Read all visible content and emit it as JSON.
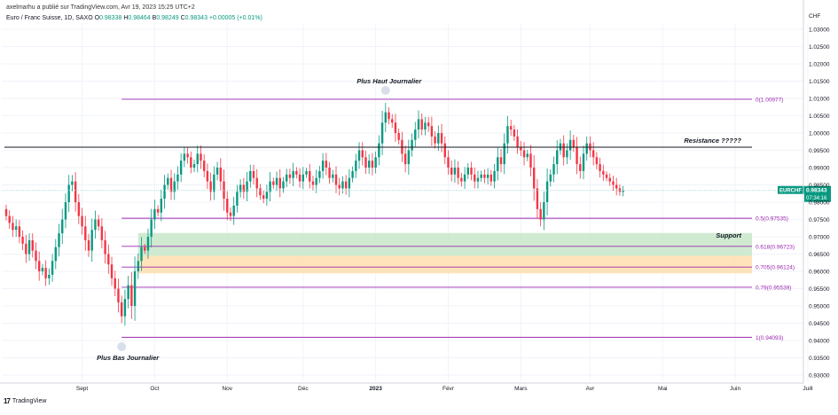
{
  "header": {
    "published_by": "axelmarhu a publié sur TradingView.com, Avr 19, 2023 15:25 UTC+2",
    "instrument": "Euro / Franc Suisse, 1D, SAXO",
    "ohlc": {
      "o_label": "O",
      "o": "0.98338",
      "h_label": "H",
      "h": "0.98464",
      "b_label": "B",
      "b": "0.98249",
      "c_label": "C",
      "c": "0.98343",
      "change": "+0.00005 (+0.01%)"
    }
  },
  "footer": {
    "brand": "TradingView",
    "logo": "17"
  },
  "colors": {
    "up": "#089981",
    "down": "#f23645",
    "fib": "#9c27b0",
    "resistance": "#131722",
    "support_zone": "#c8e6c9",
    "orange_zone": "#ffe0b2",
    "price_line": "#b2dfdb",
    "price_badge": "#089981"
  },
  "chart_data": {
    "type": "candlestick",
    "symbol": "EURCHF",
    "currency_label": "CHF",
    "price_label": "0.98343",
    "countdown_label": "07:34:16",
    "ylim": [
      0.929,
      1.035
    ],
    "y_ticks": [
      "1.03000",
      "1.02500",
      "1.02000",
      "1.01500",
      "1.01000",
      "1.00500",
      "1.00000",
      "0.99500",
      "0.99000",
      "0.98500",
      "0.98000",
      "0.97500",
      "0.97000",
      "0.96500",
      "0.96000",
      "0.95500",
      "0.95000",
      "0.94500",
      "0.94000",
      "0.93500",
      "0.93000"
    ],
    "x_ticks": [
      "Sept",
      "Oct",
      "Nov",
      "Déc",
      "2023",
      "Févr",
      "Mars",
      "Avr",
      "Mai",
      "Juin",
      "Juill"
    ],
    "x_tick_index": [
      23,
      45,
      67,
      90,
      112,
      134,
      156,
      177,
      199,
      221,
      243
    ],
    "closes": [
      0.976,
      0.974,
      0.972,
      0.973,
      0.97,
      0.968,
      0.965,
      0.969,
      0.966,
      0.963,
      0.96,
      0.961,
      0.958,
      0.959,
      0.963,
      0.967,
      0.971,
      0.975,
      0.98,
      0.985,
      0.986,
      0.98,
      0.976,
      0.973,
      0.969,
      0.966,
      0.972,
      0.975,
      0.973,
      0.969,
      0.965,
      0.962,
      0.958,
      0.955,
      0.951,
      0.947,
      0.952,
      0.956,
      0.95,
      0.96,
      0.963,
      0.967,
      0.966,
      0.97,
      0.975,
      0.978,
      0.977,
      0.981,
      0.985,
      0.987,
      0.983,
      0.986,
      0.988,
      0.992,
      0.994,
      0.993,
      0.99,
      0.991,
      0.994,
      0.992,
      0.989,
      0.986,
      0.983,
      0.988,
      0.99,
      0.986,
      0.981,
      0.977,
      0.976,
      0.979,
      0.983,
      0.985,
      0.983,
      0.986,
      0.989,
      0.987,
      0.984,
      0.982,
      0.981,
      0.983,
      0.986,
      0.985,
      0.987,
      0.984,
      0.986,
      0.988,
      0.987,
      0.989,
      0.988,
      0.986,
      0.988,
      0.989,
      0.986,
      0.985,
      0.987,
      0.989,
      0.992,
      0.99,
      0.987,
      0.988,
      0.985,
      0.984,
      0.986,
      0.984,
      0.987,
      0.989,
      0.992,
      0.995,
      0.993,
      0.99,
      0.992,
      0.99,
      0.993,
      0.997,
      1.003,
      1.006,
      1.004,
      1.003,
      1.0,
      0.998,
      0.994,
      0.991,
      0.995,
      0.998,
      1.001,
      1.004,
      1.001,
      1.003,
      1.002,
      0.999,
      0.997,
      1.0,
      0.997,
      0.993,
      0.99,
      0.988,
      0.99,
      0.987,
      0.986,
      0.988,
      0.99,
      0.988,
      0.986,
      0.987,
      0.988,
      0.987,
      0.988,
      0.986,
      0.989,
      0.993,
      0.991,
      0.997,
      1.002,
      1.001,
      0.999,
      0.996,
      0.995,
      0.993,
      0.994,
      0.99,
      0.984,
      0.978,
      0.975,
      0.98,
      0.986,
      0.988,
      0.991,
      0.995,
      0.997,
      0.993,
      0.995,
      0.998,
      0.996,
      0.991,
      0.989,
      0.994,
      0.997,
      0.995,
      0.993,
      0.991,
      0.989,
      0.988,
      0.987,
      0.986,
      0.985,
      0.984,
      0.983,
      0.9834
    ],
    "annotations": {
      "top_label": "Plus Haut Journalier",
      "bottom_label": "Plus Bas Journalier",
      "resistance_label": "Resistance ?????",
      "support_label": "Support",
      "resistance_level": 0.9959
    },
    "fib_levels": [
      {
        "label": "0(1.00977)",
        "price": 1.00977
      },
      {
        "label": "0.5(0.97535)",
        "price": 0.97535
      },
      {
        "label": "0.618(0.96723)",
        "price": 0.96723
      },
      {
        "label": "0.705(0.96124)",
        "price": 0.96124
      },
      {
        "label": "0.79(0.95539)",
        "price": 0.95539
      },
      {
        "label": "1(0.94093)",
        "price": 0.94093
      }
    ],
    "support_zone": [
      0.9645,
      0.9711
    ],
    "orange_zone": [
      0.9594,
      0.9645
    ]
  }
}
